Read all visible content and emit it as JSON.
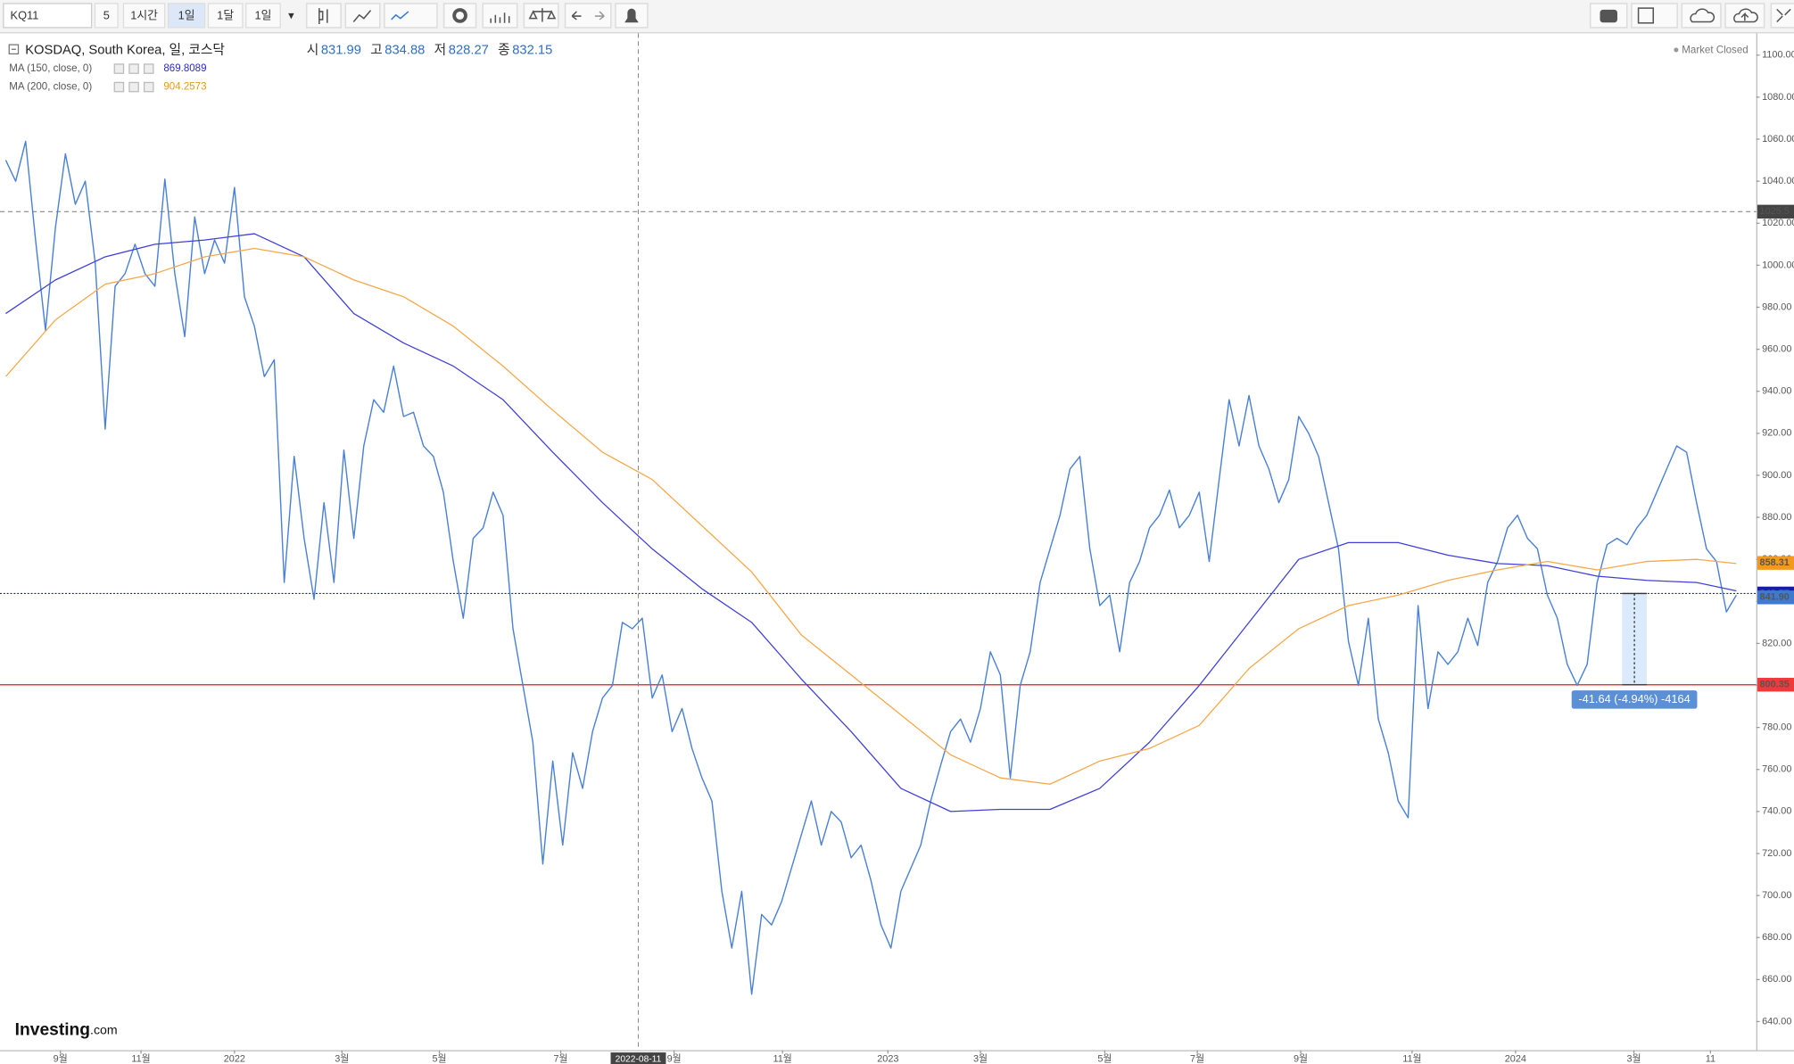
{
  "toolbar": {
    "symbol": "KQ11",
    "buttons": [
      "5",
      "1시간",
      "1일",
      "1달",
      "1일"
    ],
    "active": 2
  },
  "legend": {
    "title": "KOSDAQ, South Korea, 일, 코스닥",
    "ohlc": [
      {
        "label": "시",
        "value": "831.99"
      },
      {
        "label": "고",
        "value": "834.88"
      },
      {
        "label": "저",
        "value": "828.27"
      },
      {
        "label": "종",
        "value": "832.15"
      }
    ],
    "indicators": [
      {
        "label": "MA (150, close, 0)",
        "value": "869.8089",
        "color": "#2a2ad0"
      },
      {
        "label": "MA (200, close, 0)",
        "value": "904.2573",
        "color": "#e89a10"
      }
    ]
  },
  "status": "Market Closed",
  "logo": {
    "name": "Investing",
    "suffix": ".com"
  },
  "chart_data": {
    "type": "line",
    "xlim": [
      0,
      176
    ],
    "ylim": [
      626.4,
      1110.4
    ],
    "yticks": [
      {
        "value": 640,
        "label": "640.00"
      },
      {
        "value": 660,
        "label": "660.00"
      },
      {
        "value": 680,
        "label": "680.00"
      },
      {
        "value": 700,
        "label": "700.00"
      },
      {
        "value": 720,
        "label": "720.00"
      },
      {
        "value": 740,
        "label": "740.00"
      },
      {
        "value": 760,
        "label": "760.00"
      },
      {
        "value": 780,
        "label": "780.00"
      },
      {
        "value": 800,
        "label": "800.00"
      },
      {
        "value": 820,
        "label": "820.00"
      },
      {
        "value": 840,
        "label": "840.00"
      },
      {
        "value": 860,
        "label": "860.00"
      },
      {
        "value": 880,
        "label": "880.00"
      },
      {
        "value": 900,
        "label": "900.00"
      },
      {
        "value": 920,
        "label": "920.00"
      },
      {
        "value": 940,
        "label": "940.00"
      },
      {
        "value": 960,
        "label": "960.00"
      },
      {
        "value": 980,
        "label": "980.00"
      },
      {
        "value": 1000,
        "label": "1000.00"
      },
      {
        "value": 1020,
        "label": "1020.00"
      },
      {
        "value": 1040,
        "label": "1040.00"
      },
      {
        "value": 1060,
        "label": "1060.00"
      },
      {
        "value": 1080,
        "label": "1080.00"
      },
      {
        "value": 1100,
        "label": "1100.00"
      }
    ],
    "xticks": [
      {
        "value": 5.5,
        "label": "9월"
      },
      {
        "value": 13.6,
        "label": "11월"
      },
      {
        "value": 23,
        "label": "2022"
      },
      {
        "value": 33.8,
        "label": "3월"
      },
      {
        "value": 43.6,
        "label": "5월"
      },
      {
        "value": 55.8,
        "label": "7월"
      },
      {
        "value": 67.2,
        "label": "9월"
      },
      {
        "value": 78.1,
        "label": "11월"
      },
      {
        "value": 88.7,
        "label": "2023"
      },
      {
        "value": 98,
        "label": "3월"
      },
      {
        "value": 110.5,
        "label": "5월"
      },
      {
        "value": 119.8,
        "label": "7월"
      },
      {
        "value": 130.2,
        "label": "9월"
      },
      {
        "value": 141.4,
        "label": "11월"
      },
      {
        "value": 151.8,
        "label": "2024"
      },
      {
        "value": 163.7,
        "label": "3월"
      },
      {
        "value": 171.4,
        "label": "11"
      }
    ],
    "grid": false,
    "series": [
      {
        "name": "KOSDAQ",
        "color": "#4a80d6",
        "values": [
          1050,
          1040,
          1059,
          1012,
          969,
          1018,
          1053,
          1029,
          1040,
          1001,
          922,
          990,
          996,
          1010,
          996,
          990,
          1041,
          996,
          966,
          1023,
          996,
          1012,
          1001,
          1037,
          985,
          971,
          947,
          955,
          849,
          909,
          870,
          841,
          887,
          849,
          912,
          870,
          914,
          936,
          930,
          952,
          928,
          930,
          914,
          909,
          892,
          859,
          832,
          870,
          875,
          892,
          881,
          827,
          800,
          773,
          715,
          764,
          724,
          768,
          751,
          778,
          794,
          800,
          830,
          827,
          832,
          794,
          805,
          778,
          789,
          770,
          756,
          745,
          702,
          675,
          702,
          653,
          691,
          686,
          697,
          713,
          729,
          745,
          724,
          740,
          735,
          718,
          724,
          707,
          686,
          675,
          702,
          713,
          724,
          745,
          762,
          778,
          784,
          773,
          789,
          816,
          805,
          756,
          800,
          816,
          849,
          865,
          881,
          903,
          909,
          865,
          838,
          843,
          816,
          849,
          859,
          875,
          881,
          893,
          875,
          881,
          892,
          859,
          898,
          936,
          914,
          938,
          914,
          903,
          887,
          898,
          928,
          920,
          909,
          887,
          865,
          821,
          800,
          832,
          784,
          768,
          745,
          737,
          838,
          789,
          816,
          810,
          816,
          832,
          819,
          849,
          859,
          875,
          881,
          870,
          865,
          843,
          832,
          810,
          800,
          810,
          849,
          867,
          870,
          867,
          875,
          881,
          892,
          903,
          914,
          911,
          887,
          865,
          859,
          835,
          843
        ]
      },
      {
        "name": "MA (150, close, 0)",
        "color": "#4040d8",
        "x": [
          0,
          5,
          10,
          15,
          20,
          25,
          30,
          35,
          40,
          45,
          50,
          55,
          60,
          65,
          70,
          75,
          80,
          85,
          90,
          95,
          100,
          105,
          110,
          115,
          120,
          125,
          130,
          135,
          140,
          145,
          150,
          155,
          160,
          165,
          170,
          174
        ],
        "values": [
          977,
          993,
          1004,
          1010,
          1012,
          1015,
          1004,
          977,
          963,
          952,
          936,
          911,
          887,
          865,
          846,
          830,
          803,
          778,
          751,
          740,
          741,
          741,
          751,
          773,
          800,
          830,
          860,
          868,
          868,
          862,
          858,
          857,
          852,
          850,
          849,
          845
        ]
      },
      {
        "name": "MA (200, close, 0)",
        "color": "#f6a84a",
        "x": [
          0,
          5,
          10,
          15,
          20,
          25,
          30,
          35,
          40,
          45,
          50,
          55,
          60,
          65,
          70,
          75,
          80,
          85,
          90,
          95,
          100,
          105,
          110,
          115,
          120,
          125,
          130,
          135,
          140,
          145,
          150,
          155,
          160,
          165,
          170,
          174
        ],
        "values": [
          947,
          974,
          991,
          996,
          1004,
          1008,
          1004,
          993,
          985,
          971,
          952,
          931,
          911,
          898,
          876,
          854,
          824,
          805,
          786,
          767,
          756,
          753,
          764,
          770,
          781,
          808,
          827,
          838,
          843,
          850,
          855,
          859,
          855,
          859,
          860,
          858
        ]
      }
    ],
    "price_labels": [
      {
        "value": 858.31,
        "label": "858.31",
        "color": "#f39a1e"
      },
      {
        "value": 843.77,
        "label": "843.77",
        "color": "#1a1aa8",
        "line": "dotted"
      },
      {
        "value": 841.9,
        "label": "841.90",
        "color": "#3d7ad0"
      },
      {
        "value": 800.35,
        "label": "800.35",
        "color": "#f03a3a",
        "line": "solid"
      }
    ],
    "crosshair": {
      "x": {
        "value": 63.6,
        "label": "2022-08-11"
      },
      "y": 1025.5
    },
    "measure": {
      "x": [
        162.5,
        165
      ],
      "from": 1,
      "to": 3,
      "label": "-41.64 (-4.94%) -4164"
    }
  }
}
